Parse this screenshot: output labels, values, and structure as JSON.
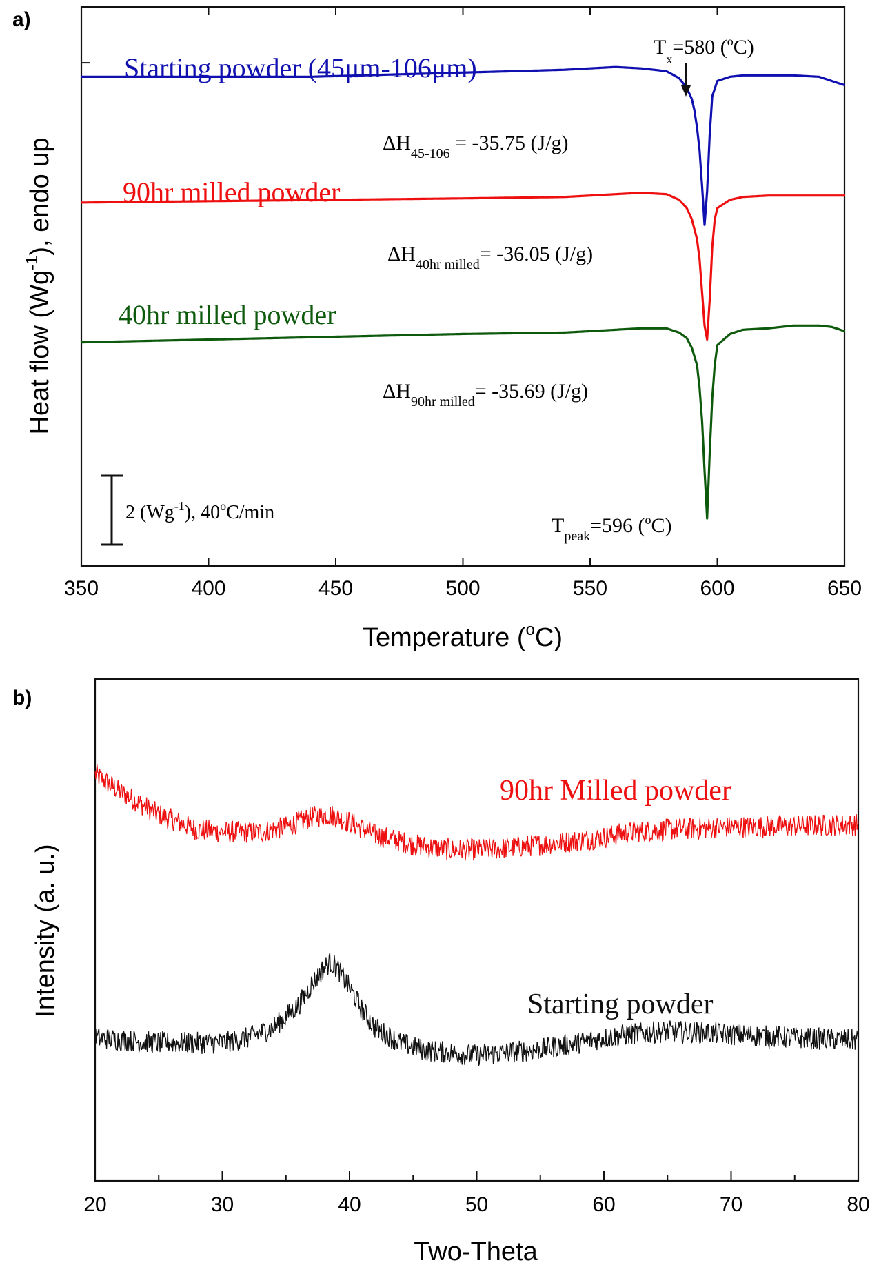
{
  "chart_data": [
    {
      "panel_label": "a)",
      "type": "line",
      "title": "",
      "xlabel": "Temperature (°C)",
      "xlabel_parts": {
        "main": "Temperature (",
        "sup": "o",
        "tail": "C)"
      },
      "ylabel": "Heat flow (Wg^-1), endo up",
      "ylabel_parts": {
        "main": "Heat flow (Wg",
        "sup": "-1",
        "tail": "), endo up"
      },
      "xlim": [
        350,
        650
      ],
      "ylim": [
        -6,
        14
      ],
      "x_ticks": [
        350,
        400,
        450,
        500,
        550,
        600,
        650
      ],
      "y_tick_positions": [
        2,
        7,
        12
      ],
      "series": [
        {
          "name": "Starting powder (45μm-106μm)",
          "color": "#1010b0",
          "x": [
            350,
            400,
            440,
            460,
            480,
            500,
            520,
            540,
            550,
            560,
            570,
            580,
            585,
            588,
            590,
            591,
            592,
            593,
            594,
            595,
            596,
            597,
            598,
            600,
            605,
            610,
            620,
            630,
            640,
            645,
            650
          ],
          "y": [
            11.5,
            11.5,
            11.5,
            11.55,
            11.6,
            11.65,
            11.7,
            11.75,
            11.8,
            11.85,
            11.8,
            11.7,
            11.45,
            11.1,
            10.7,
            10.3,
            9.7,
            8.9,
            7.6,
            6.2,
            7.4,
            9.4,
            10.8,
            11.35,
            11.5,
            11.55,
            11.55,
            11.55,
            11.5,
            11.35,
            11.2
          ]
        },
        {
          "name": "90hr milled powder",
          "color": "#ee1010",
          "x": [
            350,
            400,
            450,
            500,
            540,
            560,
            570,
            580,
            585,
            588,
            590,
            592,
            593,
            594,
            595,
            596,
            597,
            598,
            599,
            600,
            605,
            610,
            620,
            630,
            640,
            650
          ],
          "y": [
            7.0,
            7.05,
            7.1,
            7.15,
            7.2,
            7.3,
            7.35,
            7.3,
            7.1,
            6.8,
            6.4,
            5.7,
            5.0,
            3.8,
            2.6,
            2.1,
            3.5,
            5.4,
            6.4,
            6.8,
            7.1,
            7.2,
            7.25,
            7.25,
            7.25,
            7.25
          ]
        },
        {
          "name": "40hr milled powder",
          "color": "#0d5a0d",
          "x": [
            350,
            400,
            450,
            500,
            540,
            560,
            570,
            580,
            585,
            588,
            590,
            592,
            593,
            594,
            595,
            596,
            597,
            598,
            599,
            600,
            605,
            610,
            620,
            630,
            640,
            645,
            650
          ],
          "y": [
            2.0,
            2.1,
            2.2,
            2.3,
            2.35,
            2.45,
            2.5,
            2.5,
            2.35,
            2.15,
            1.8,
            1.2,
            0.4,
            -0.8,
            -2.6,
            -4.3,
            -2.0,
            0.0,
            1.2,
            1.9,
            2.3,
            2.45,
            2.5,
            2.6,
            2.6,
            2.55,
            2.4
          ]
        }
      ],
      "annotations": {
        "tx": {
          "main": "T",
          "sub": "x",
          "tail": "=580 (",
          "sup": "o",
          "end": "C)"
        },
        "tpeak": {
          "main": "T",
          "sub": "peak",
          "tail": "=596 (",
          "sup": "o",
          "end": "C)"
        },
        "dh1": {
          "main": "ΔH",
          "sub": "45-106",
          "tail": " = -35.75 (J/g)"
        },
        "dh2": {
          "main": "ΔH",
          "sub": "40hr milled",
          "tail": "= -36.05 (J/g)"
        },
        "dh3": {
          "main": "ΔH",
          "sub": "90hr milled",
          "tail": "= -35.69 (J/g)"
        },
        "scalebar": {
          "a": "2 (Wg",
          "sup1": "-1",
          "b": "), 40",
          "sup2": "o",
          "c": "C/min"
        },
        "legend": {
          "s1": "Starting powder (45μm-106μm)",
          "s2": "90hr milled powder",
          "s3": "40hr milled powder"
        }
      }
    },
    {
      "panel_label": "b)",
      "type": "line",
      "title": "",
      "xlabel": "Two-Theta",
      "ylabel": "Intensity (a. u.)",
      "xlim": [
        20,
        80
      ],
      "ylim": [
        0,
        10
      ],
      "x_ticks": [
        20,
        30,
        40,
        50,
        60,
        70,
        80
      ],
      "noise": 0.22,
      "series": [
        {
          "name": "90hr Milled powder",
          "color": "#ee1010",
          "x": [
            20,
            22,
            25,
            28,
            30,
            33,
            35,
            37,
            38.5,
            40,
            42,
            45,
            48,
            50,
            52,
            55,
            58,
            60,
            62,
            65,
            68,
            70,
            75,
            80
          ],
          "y": [
            8.1,
            7.75,
            7.3,
            7.0,
            6.95,
            6.95,
            7.05,
            7.25,
            7.3,
            7.15,
            6.9,
            6.7,
            6.6,
            6.6,
            6.62,
            6.7,
            6.78,
            6.85,
            6.95,
            7.0,
            7.03,
            7.05,
            7.07,
            7.1
          ]
        },
        {
          "name": "Starting powder",
          "color": "#111111",
          "x": [
            20,
            25,
            30,
            32,
            34,
            36,
            37,
            38,
            38.5,
            39,
            40,
            41,
            42,
            44,
            46,
            48,
            50,
            52,
            55,
            58,
            60,
            62,
            65,
            68,
            70,
            75,
            80
          ],
          "y": [
            2.85,
            2.75,
            2.75,
            2.85,
            3.05,
            3.5,
            3.9,
            4.25,
            4.35,
            4.25,
            3.85,
            3.4,
            3.05,
            2.75,
            2.6,
            2.55,
            2.5,
            2.55,
            2.62,
            2.75,
            2.85,
            2.92,
            2.98,
            2.95,
            2.92,
            2.85,
            2.8
          ]
        }
      ],
      "annotations": {
        "label_red": "90hr Milled powder",
        "label_black": "Starting powder"
      }
    }
  ]
}
